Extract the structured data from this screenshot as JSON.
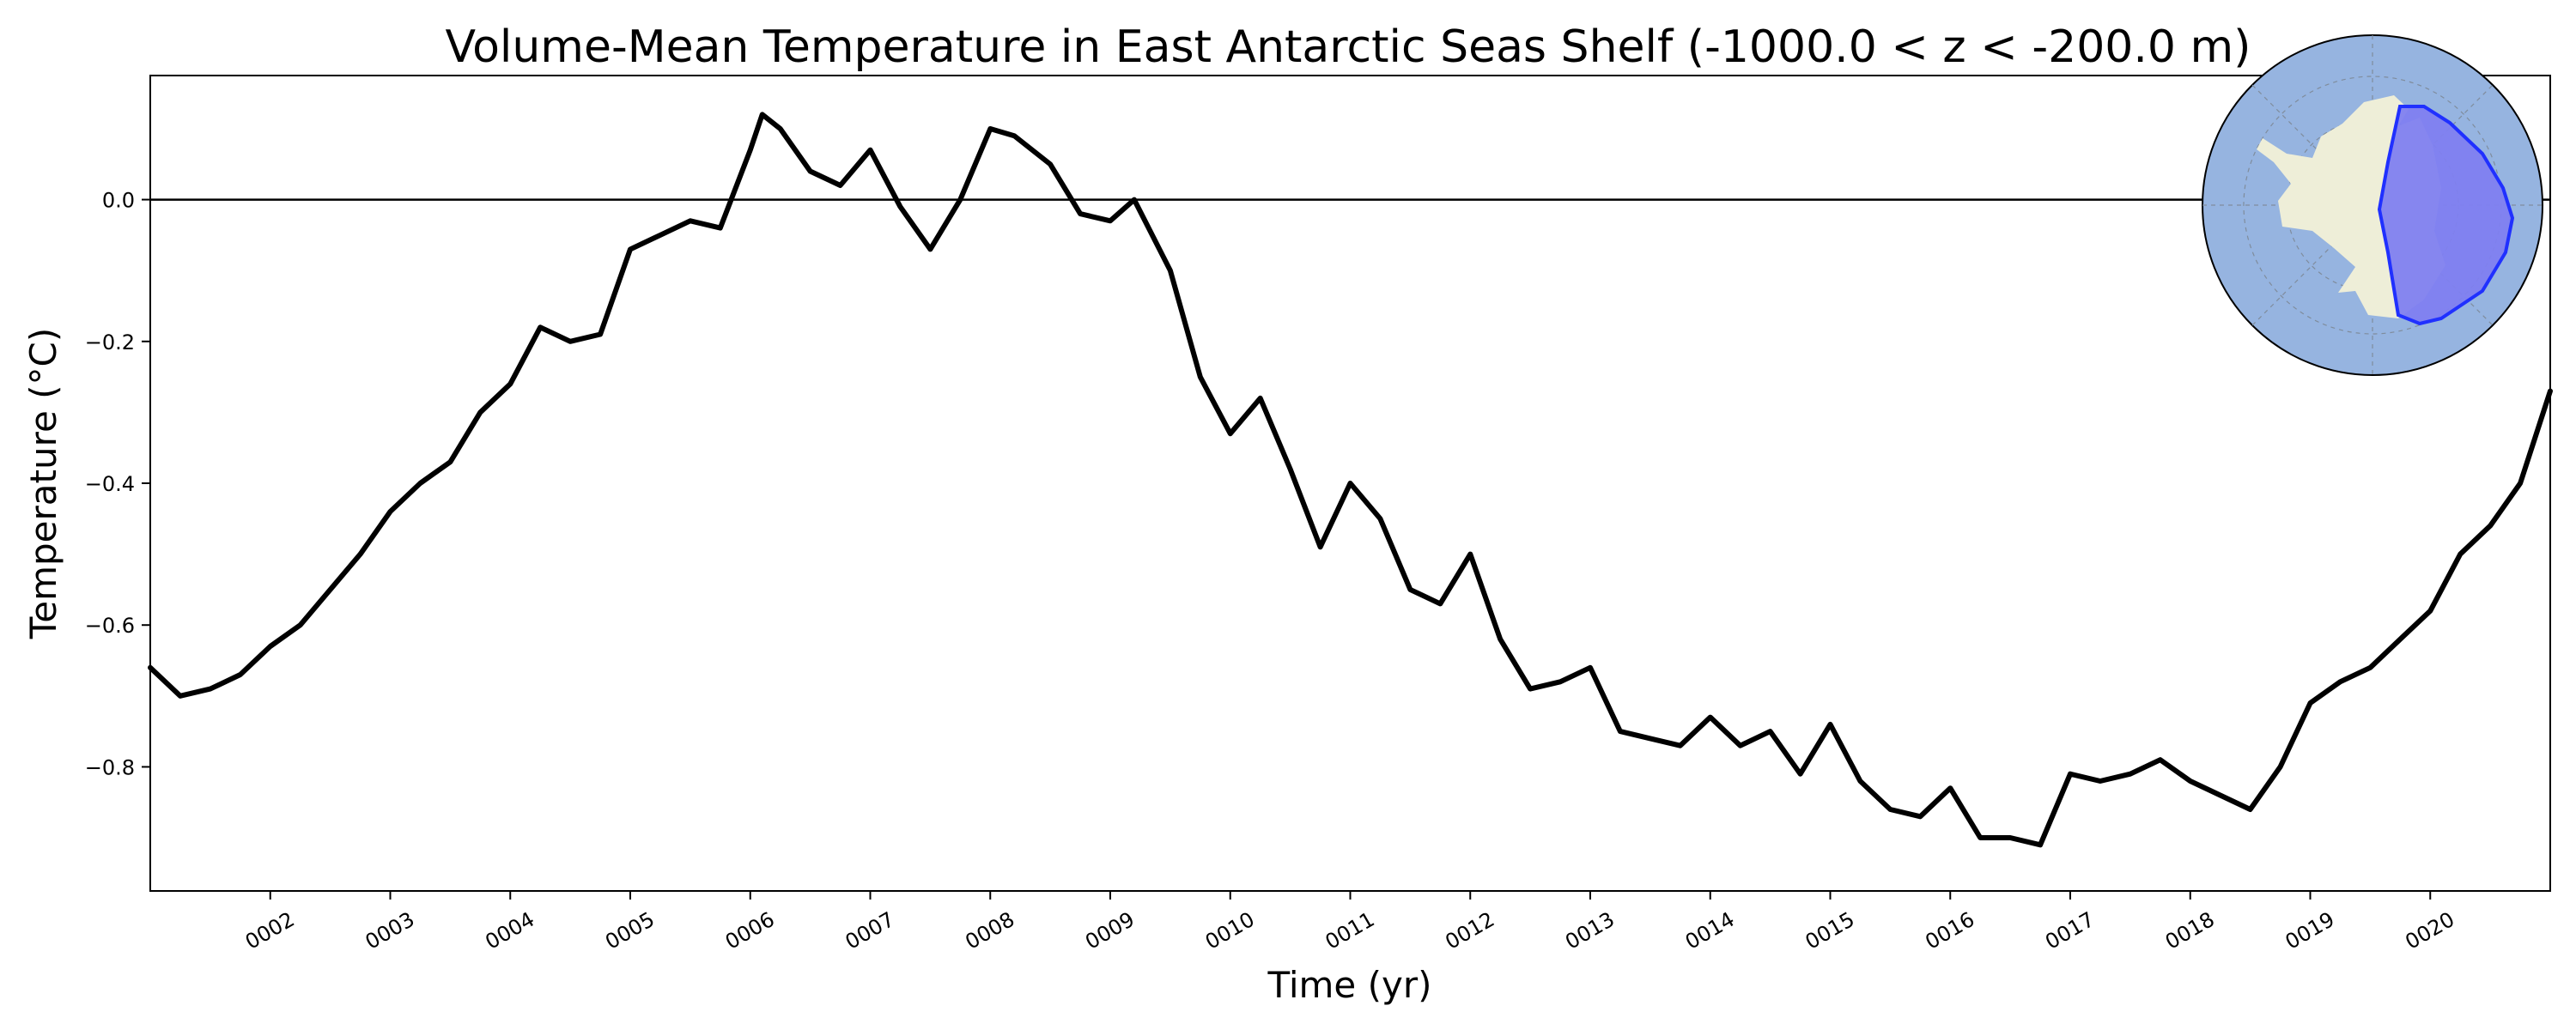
{
  "chart_data": {
    "type": "line",
    "title": "Volume-Mean Temperature in East Antarctic Seas Shelf (-1000.0 < z < -200.0 m)",
    "xlabel": "Time (yr)",
    "ylabel": "Temperature (°C)",
    "xlim": [
      1.0,
      21.0
    ],
    "ylim": [
      -0.975,
      0.175
    ],
    "x_tick_labels": [
      "0002",
      "0003",
      "0004",
      "0005",
      "0006",
      "0007",
      "0008",
      "0009",
      "0010",
      "0011",
      "0012",
      "0013",
      "0014",
      "0015",
      "0016",
      "0017",
      "0018",
      "0019",
      "0020"
    ],
    "x_tick_values": [
      2,
      3,
      4,
      5,
      6,
      7,
      8,
      9,
      10,
      11,
      12,
      13,
      14,
      15,
      16,
      17,
      18,
      19,
      20
    ],
    "y_tick_labels": [
      "0.0",
      "−0.2",
      "−0.4",
      "−0.6",
      "−0.8"
    ],
    "y_tick_values": [
      0.0,
      -0.2,
      -0.4,
      -0.6,
      -0.8
    ],
    "grid": false,
    "reference_line_y": 0.0,
    "series_color": "#000000",
    "inset_map": {
      "description": "south-polar map of Antarctica with East Antarctic shelf region highlighted",
      "ocean_color": "#96b4e0",
      "land_color": "#eeeed8",
      "region_color": "#8080f0",
      "region_edge_color": "#2030ff"
    },
    "series": [
      {
        "x": [
          1.0,
          1.25,
          1.5,
          1.75,
          2.0,
          2.25,
          2.5,
          2.75,
          3.0,
          3.25,
          3.5,
          3.75,
          4.0,
          4.25,
          4.5,
          4.75,
          5.0,
          5.25,
          5.5,
          5.75,
          6.0,
          6.1,
          6.25,
          6.5,
          6.75,
          7.0,
          7.25,
          7.5,
          7.75,
          8.0,
          8.2,
          8.5,
          8.75,
          9.0,
          9.2,
          9.5,
          9.75,
          10.0,
          10.25,
          10.5,
          10.75,
          11.0,
          11.25,
          11.5,
          11.75,
          12.0,
          12.25,
          12.5,
          12.75,
          13.0,
          13.25,
          13.5,
          13.75,
          14.0,
          14.25,
          14.5,
          14.75,
          15.0,
          15.25,
          15.5,
          15.75,
          16.0,
          16.25,
          16.5,
          16.75,
          17.0,
          17.25,
          17.5,
          17.75,
          18.0,
          18.25,
          18.5,
          18.75,
          19.0,
          19.25,
          19.5,
          19.75,
          20.0,
          20.25,
          20.5,
          20.75,
          21.0
        ],
        "y": [
          -0.66,
          -0.7,
          -0.69,
          -0.67,
          -0.63,
          -0.6,
          -0.55,
          -0.5,
          -0.44,
          -0.4,
          -0.37,
          -0.3,
          -0.26,
          -0.18,
          -0.2,
          -0.19,
          -0.07,
          -0.05,
          -0.03,
          -0.04,
          0.07,
          0.12,
          0.1,
          0.04,
          0.02,
          0.07,
          -0.01,
          -0.07,
          0.0,
          0.1,
          0.09,
          0.05,
          -0.02,
          -0.03,
          0.0,
          -0.1,
          -0.25,
          -0.33,
          -0.28,
          -0.38,
          -0.49,
          -0.4,
          -0.45,
          -0.55,
          -0.57,
          -0.5,
          -0.62,
          -0.69,
          -0.68,
          -0.66,
          -0.75,
          -0.76,
          -0.77,
          -0.73,
          -0.77,
          -0.75,
          -0.81,
          -0.74,
          -0.82,
          -0.86,
          -0.87,
          -0.83,
          -0.9,
          -0.9,
          -0.91,
          -0.81,
          -0.82,
          -0.81,
          -0.79,
          -0.82,
          -0.84,
          -0.86,
          -0.8,
          -0.71,
          -0.68,
          -0.66,
          -0.62,
          -0.58,
          -0.5,
          -0.46,
          -0.4,
          -0.27
        ]
      }
    ]
  }
}
